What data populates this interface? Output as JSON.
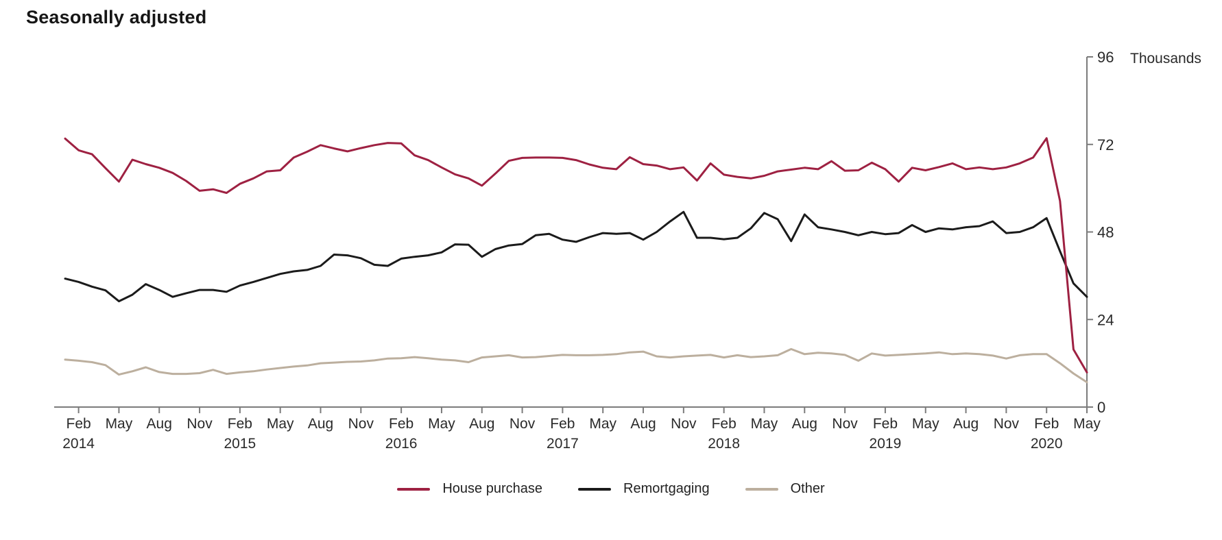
{
  "title": "Seasonally adjusted",
  "chart_data": {
    "type": "line",
    "title": "Seasonally adjusted",
    "unit": "Thousands",
    "xlabel": "",
    "ylabel": "Thousands",
    "ylim": [
      0,
      96
    ],
    "y_ticks": [
      0,
      24,
      48,
      72,
      96
    ],
    "grid": false,
    "legend_position": "bottom",
    "x_start": "Jan 2014",
    "x_end": "May 2020",
    "x_frequency": "monthly",
    "x_ticks": [
      {
        "index": 1,
        "label": "Feb",
        "year": "2014"
      },
      {
        "index": 4,
        "label": "May"
      },
      {
        "index": 7,
        "label": "Aug"
      },
      {
        "index": 10,
        "label": "Nov"
      },
      {
        "index": 13,
        "label": "Feb",
        "year": "2015"
      },
      {
        "index": 16,
        "label": "May"
      },
      {
        "index": 19,
        "label": "Aug"
      },
      {
        "index": 22,
        "label": "Nov"
      },
      {
        "index": 25,
        "label": "Feb",
        "year": "2016"
      },
      {
        "index": 28,
        "label": "May"
      },
      {
        "index": 31,
        "label": "Aug"
      },
      {
        "index": 34,
        "label": "Nov"
      },
      {
        "index": 37,
        "label": "Feb",
        "year": "2017"
      },
      {
        "index": 40,
        "label": "May"
      },
      {
        "index": 43,
        "label": "Aug"
      },
      {
        "index": 46,
        "label": "Nov"
      },
      {
        "index": 49,
        "label": "Feb",
        "year": "2018"
      },
      {
        "index": 52,
        "label": "May"
      },
      {
        "index": 55,
        "label": "Aug"
      },
      {
        "index": 58,
        "label": "Nov"
      },
      {
        "index": 61,
        "label": "Feb",
        "year": "2019"
      },
      {
        "index": 64,
        "label": "May"
      },
      {
        "index": 67,
        "label": "Aug"
      },
      {
        "index": 70,
        "label": "Nov"
      },
      {
        "index": 73,
        "label": "Feb",
        "year": "2020"
      },
      {
        "index": 76,
        "label": "May"
      }
    ],
    "series": [
      {
        "name": "House purchase",
        "color": "#9e2142",
        "values": [
          73.6,
          70.4,
          69.3,
          65.5,
          61.8,
          67.8,
          66.6,
          65.6,
          64.2,
          62.0,
          59.3,
          59.7,
          58.7,
          61.2,
          62.7,
          64.6,
          64.9,
          68.4,
          70.0,
          71.8,
          70.9,
          70.1,
          71.0,
          71.8,
          72.4,
          72.3,
          69.0,
          67.7,
          65.7,
          63.8,
          62.7,
          60.7,
          64.0,
          67.5,
          68.3,
          68.4,
          68.4,
          68.3,
          67.7,
          66.5,
          65.6,
          65.2,
          68.5,
          66.6,
          66.2,
          65.2,
          65.7,
          62.1,
          66.8,
          63.7,
          63.1,
          62.7,
          63.4,
          64.6,
          65.1,
          65.6,
          65.2,
          67.4,
          64.8,
          64.9,
          67.0,
          65.2,
          61.8,
          65.6,
          64.9,
          65.8,
          66.8,
          65.2,
          65.7,
          65.2,
          65.7,
          66.8,
          68.4,
          73.7,
          56.5,
          15.8,
          9.5
        ]
      },
      {
        "name": "Remortgaging",
        "color": "#1b1b1b",
        "values": [
          35.2,
          34.3,
          33.0,
          32.0,
          29.0,
          30.8,
          33.7,
          32.1,
          30.2,
          31.2,
          32.1,
          32.1,
          31.6,
          33.3,
          34.3,
          35.4,
          36.5,
          37.2,
          37.6,
          38.7,
          41.8,
          41.6,
          40.8,
          39.0,
          38.7,
          40.7,
          41.2,
          41.6,
          42.4,
          44.6,
          44.5,
          41.2,
          43.3,
          44.3,
          44.7,
          47.1,
          47.5,
          45.9,
          45.3,
          46.6,
          47.7,
          47.5,
          47.7,
          45.9,
          48.0,
          50.9,
          53.5,
          46.4,
          46.4,
          46.0,
          46.4,
          49.0,
          53.2,
          51.5,
          45.5,
          52.8,
          49.3,
          48.7,
          48.0,
          47.1,
          48.0,
          47.4,
          47.7,
          49.9,
          48.0,
          49.0,
          48.7,
          49.3,
          49.6,
          50.9,
          47.7,
          48.0,
          49.3,
          51.8,
          42.7,
          33.9,
          30.2
        ]
      },
      {
        "name": "Other",
        "color": "#bcaf9e",
        "values": [
          13.0,
          12.7,
          12.3,
          11.5,
          8.9,
          9.8,
          10.9,
          9.6,
          9.1,
          9.1,
          9.3,
          10.2,
          9.1,
          9.5,
          9.8,
          10.3,
          10.7,
          11.1,
          11.4,
          12.0,
          12.2,
          12.4,
          12.5,
          12.8,
          13.3,
          13.4,
          13.7,
          13.4,
          13.0,
          12.8,
          12.3,
          13.6,
          13.9,
          14.2,
          13.6,
          13.7,
          14.0,
          14.3,
          14.2,
          14.2,
          14.3,
          14.5,
          15.0,
          15.2,
          13.9,
          13.6,
          13.9,
          14.1,
          14.3,
          13.6,
          14.2,
          13.7,
          13.9,
          14.2,
          15.9,
          14.5,
          14.9,
          14.7,
          14.3,
          12.7,
          14.7,
          14.1,
          14.3,
          14.5,
          14.7,
          15.0,
          14.5,
          14.7,
          14.5,
          14.1,
          13.3,
          14.2,
          14.5,
          14.5,
          12.0,
          9.2,
          6.8
        ]
      }
    ],
    "style": {
      "axis_color": "#7b7b7b",
      "tick_text_color": "#2a2a2a",
      "line_width": 3
    }
  }
}
